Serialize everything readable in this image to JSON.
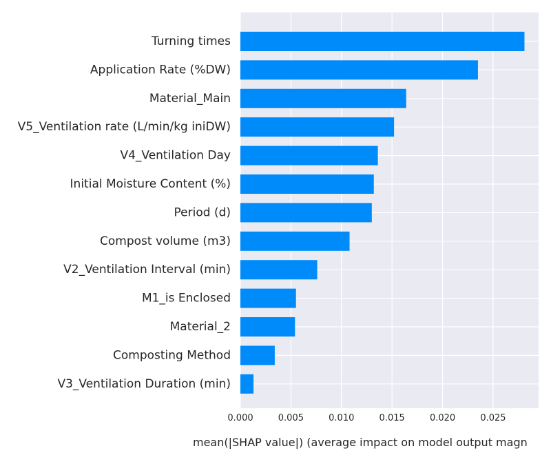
{
  "chart_data": {
    "type": "bar",
    "orientation": "horizontal",
    "categories": [
      "Turning times",
      "Application Rate (%DW)",
      "Material_Main",
      "V5_Ventilation rate (L/min/kg iniDW)",
      "V4_Ventilation Day",
      "Initial Moisture Content (%)",
      "Period (d)",
      "Compost volume (m3)",
      "V2_Ventilation Interval (min)",
      "M1_is Enclosed",
      "Material_2",
      "Composting Method",
      "V3_Ventilation Duration (min)"
    ],
    "values": [
      0.0281,
      0.0235,
      0.0164,
      0.0152,
      0.0136,
      0.0132,
      0.013,
      0.0108,
      0.0076,
      0.0055,
      0.0054,
      0.0034,
      0.0013
    ],
    "xticks": [
      "0.000",
      "0.005",
      "0.010",
      "0.015",
      "0.020",
      "0.025"
    ],
    "xtick_values": [
      0,
      0.005,
      0.01,
      0.015,
      0.02,
      0.025
    ],
    "xlim": [
      0,
      0.0295
    ],
    "xlabel": "mean(|SHAP value|) (average impact on model output magn",
    "ylabel": "",
    "title": "",
    "grid": true,
    "bar_color": "#008bfb",
    "background_color": "#eaeaf2",
    "grid_color": "#ffffff"
  }
}
